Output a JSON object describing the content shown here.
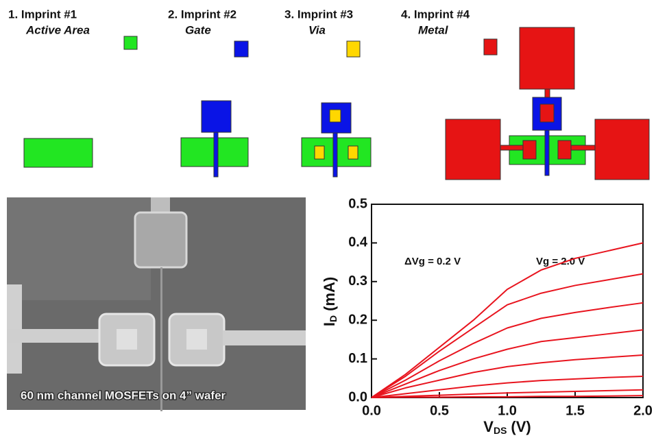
{
  "panels": [
    {
      "title": "1. Imprint #1",
      "subtitle": "Active Area"
    },
    {
      "title": "2. Imprint #2",
      "subtitle": "Gate"
    },
    {
      "title": "3. Imprint #3",
      "subtitle": "Via"
    },
    {
      "title": "4. Imprint  #4",
      "subtitle": "Metal"
    }
  ],
  "image_caption": "60 nm channel MOSFETs on 4” wafer",
  "chart_data": {
    "type": "line",
    "xlabel": {
      "symbol": "V",
      "subscript": "DS",
      "unit": "(V)"
    },
    "ylabel": {
      "symbol": "I",
      "subscript": "D",
      "unit": "(mA)"
    },
    "annotations": [
      "ΔVg = 0.2 V",
      "Vg = 2.0 V"
    ],
    "x": [
      0,
      0.25,
      0.5,
      0.75,
      1.0,
      1.25,
      1.5,
      1.75,
      2.0
    ],
    "series": [
      {
        "color": "#e8141e",
        "values": [
          0,
          0.06,
          0.13,
          0.2,
          0.28,
          0.33,
          0.36,
          0.38,
          0.4
        ]
      },
      {
        "color": "#e8141e",
        "values": [
          0,
          0.055,
          0.12,
          0.18,
          0.24,
          0.27,
          0.29,
          0.305,
          0.32
        ]
      },
      {
        "color": "#e8141e",
        "values": [
          0,
          0.045,
          0.095,
          0.14,
          0.18,
          0.205,
          0.22,
          0.233,
          0.245
        ]
      },
      {
        "color": "#e8141e",
        "values": [
          0,
          0.035,
          0.07,
          0.1,
          0.125,
          0.145,
          0.155,
          0.165,
          0.175
        ]
      },
      {
        "color": "#e8141e",
        "values": [
          0,
          0.025,
          0.045,
          0.065,
          0.08,
          0.09,
          0.098,
          0.104,
          0.11
        ]
      },
      {
        "color": "#e8141e",
        "values": [
          0,
          0.01,
          0.02,
          0.03,
          0.038,
          0.044,
          0.048,
          0.052,
          0.055
        ]
      },
      {
        "color": "#e8141e",
        "values": [
          0,
          0.003,
          0.006,
          0.009,
          0.012,
          0.014,
          0.016,
          0.018,
          0.02
        ]
      },
      {
        "color": "#e8141e",
        "values": [
          0,
          0.001,
          0.001,
          0.002,
          0.002,
          0.003,
          0.003,
          0.004,
          0.005
        ]
      }
    ],
    "xlim": [
      0,
      2.0
    ],
    "xticks": [
      {
        "value": 0,
        "label": "0.0"
      },
      0.5,
      {
        "value": 1,
        "label": "1.0"
      },
      1.5,
      {
        "value": 2,
        "label": "2.0"
      }
    ],
    "ylim": [
      0,
      0.5
    ],
    "yticks": [
      {
        "value": 0,
        "label": "0.0"
      },
      0.1,
      0.2,
      0.3,
      0.4,
      0.5
    ]
  }
}
